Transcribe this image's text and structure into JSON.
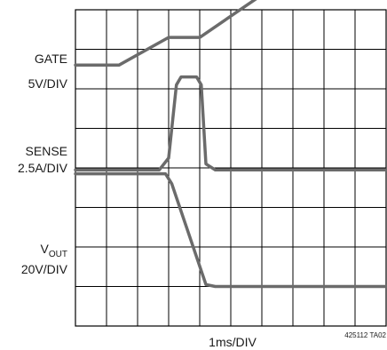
{
  "chart_data": {
    "type": "line",
    "xlabel": "1ms/DIV",
    "figure_id": "425112 TA02",
    "x_divisions": 10,
    "y_divisions": 8,
    "grid": true,
    "trace_color": "#6b6b6b",
    "grid_color": "#000000",
    "channels": [
      {
        "label_line1": "GATE",
        "label_line2": "5V/DIV",
        "points": [
          [
            0,
            6.6
          ],
          [
            1.4,
            6.6
          ],
          [
            3.0,
            7.3
          ],
          [
            4.0,
            7.3
          ],
          [
            6.6,
            8.7
          ],
          [
            10,
            8.7
          ]
        ]
      },
      {
        "label_line1": "SENSE",
        "label_line2": "2.5A/DIV",
        "points": [
          [
            0,
            3.95
          ],
          [
            2.7,
            3.95
          ],
          [
            3.0,
            4.25
          ],
          [
            3.25,
            6.1
          ],
          [
            3.4,
            6.3
          ],
          [
            3.9,
            6.3
          ],
          [
            4.05,
            6.1
          ],
          [
            4.2,
            4.1
          ],
          [
            4.5,
            3.95
          ],
          [
            10,
            3.95
          ]
        ]
      },
      {
        "label_main": "V",
        "label_sub": "OUT",
        "label_line2": "20V/DIV",
        "points": [
          [
            0,
            3.85
          ],
          [
            2.9,
            3.85
          ],
          [
            3.1,
            3.6
          ],
          [
            4.2,
            1.05
          ],
          [
            4.5,
            1.0
          ],
          [
            10,
            1.0
          ]
        ]
      }
    ]
  }
}
